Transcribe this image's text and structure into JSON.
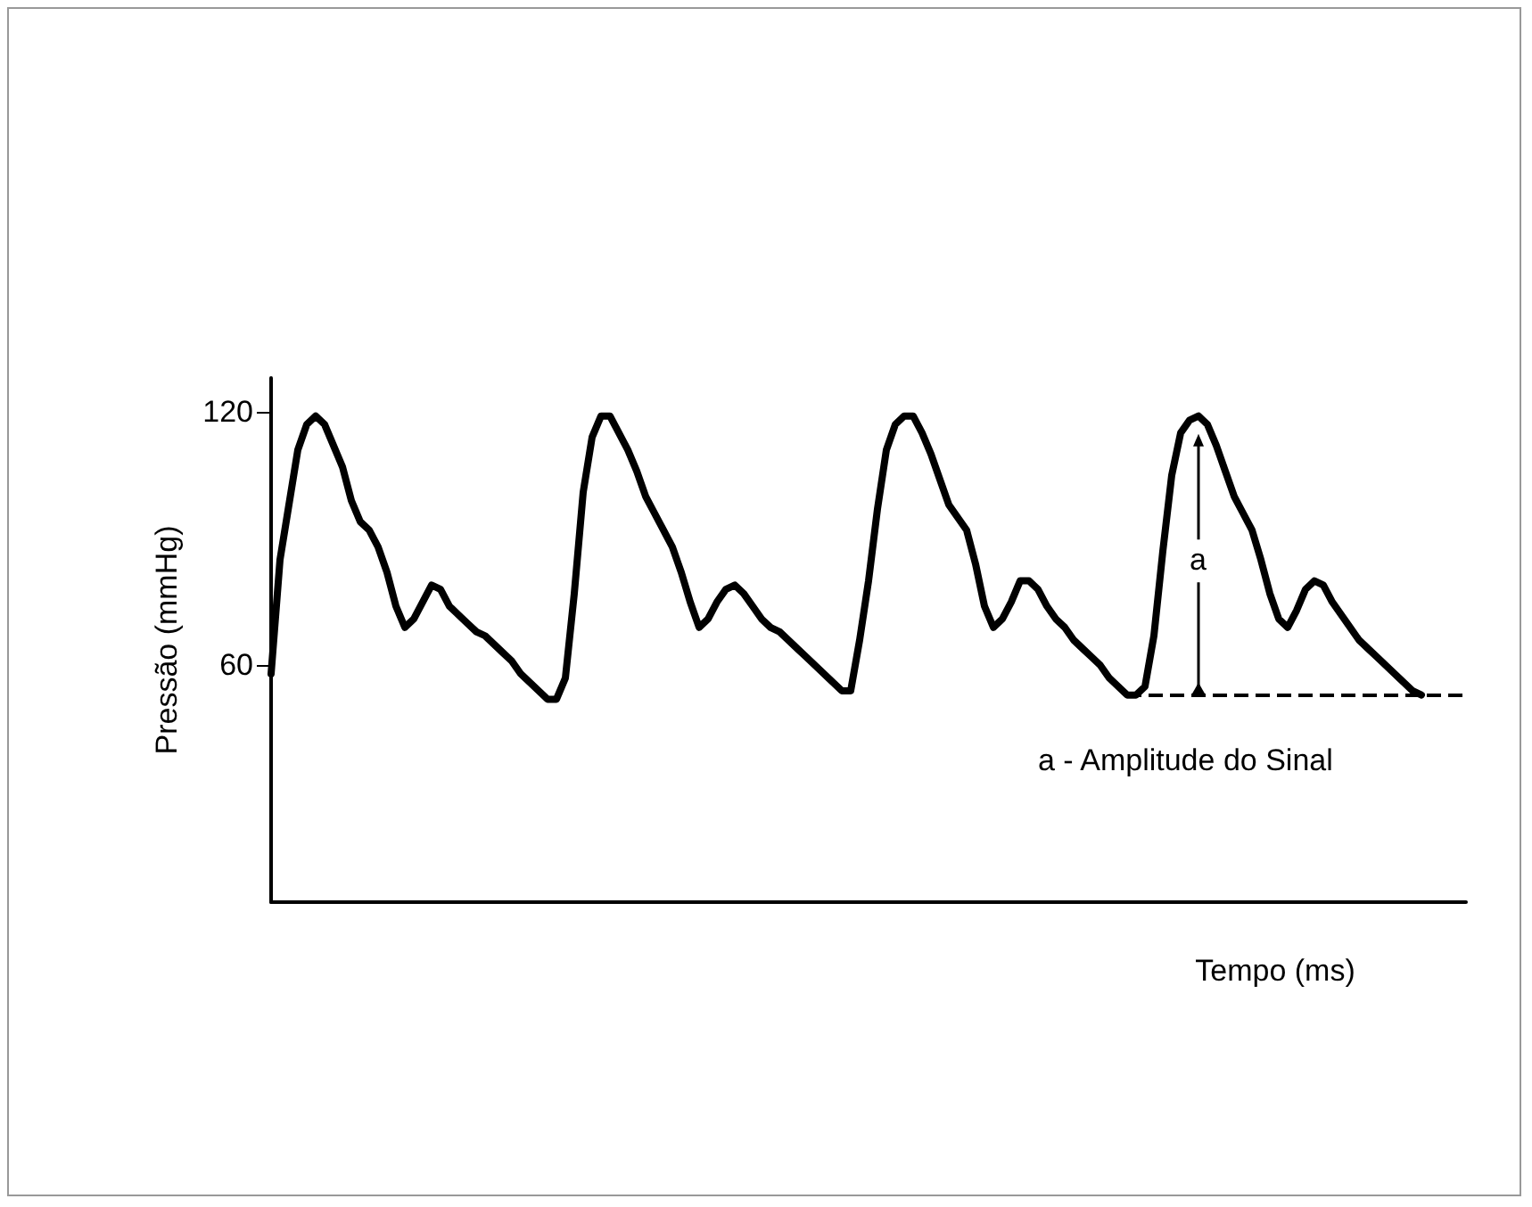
{
  "chart_data": {
    "type": "line",
    "xlabel": "Tempo (ms)",
    "ylabel": "Pressão (mmHg)",
    "categories": [
      null,
      null,
      null,
      null,
      null,
      null,
      null,
      null,
      null,
      null,
      null,
      null,
      null,
      null,
      null,
      null,
      null,
      null,
      null,
      null,
      null,
      null,
      null,
      null,
      null,
      null,
      null,
      null,
      null,
      null,
      null,
      null,
      null,
      null,
      null,
      null,
      null,
      null,
      null,
      null,
      null,
      null,
      null,
      null,
      null,
      null,
      null,
      null,
      null,
      null,
      null,
      null,
      null,
      null,
      null,
      null,
      null,
      null,
      null,
      null,
      null,
      null,
      null,
      null,
      null,
      null,
      null,
      null,
      null,
      null,
      null,
      null,
      null,
      null,
      null,
      null,
      null,
      null,
      null,
      null,
      null,
      null,
      null,
      null,
      null,
      null,
      null,
      null,
      null,
      null,
      null,
      null,
      null,
      null,
      null,
      null,
      null,
      null,
      null,
      null,
      null,
      null,
      null,
      null,
      null,
      null,
      null,
      null,
      null,
      null,
      null,
      null,
      null,
      null,
      null,
      null,
      null,
      null,
      null,
      null,
      null,
      null,
      null,
      null,
      null,
      null,
      null,
      null,
      null,
      null,
      null,
      null,
      null,
      null,
      null
    ],
    "series": [
      {
        "color": "#000000",
        "values": [
          58,
          85,
          98,
          111,
          117,
          119,
          117,
          112,
          107,
          99,
          94,
          92,
          88,
          82,
          74,
          69,
          71,
          75,
          79,
          78,
          74,
          72,
          70,
          68,
          67,
          65,
          63,
          61,
          58,
          56,
          54,
          52,
          52,
          57,
          77,
          101,
          114,
          119,
          119,
          115,
          111,
          106,
          100,
          96,
          92,
          88,
          82,
          75,
          69,
          71,
          75,
          78,
          79,
          77,
          74,
          71,
          69,
          68,
          66,
          64,
          62,
          60,
          58,
          56,
          54,
          54,
          66,
          80,
          97,
          111,
          117,
          119,
          119,
          115,
          110,
          104,
          98,
          95,
          92,
          84,
          74,
          69,
          71,
          75,
          80,
          80,
          78,
          74,
          71,
          69,
          66,
          64,
          62,
          60,
          57,
          55,
          53,
          53,
          55,
          67,
          87,
          105,
          115,
          118,
          119,
          117,
          112,
          106,
          100,
          96,
          92,
          85,
          77,
          71,
          69,
          73,
          78,
          80,
          79,
          75,
          72,
          69,
          66,
          64,
          62,
          60,
          58,
          56,
          54,
          53,
          null,
          null,
          null,
          null,
          null
        ]
      }
    ],
    "ylim": [
      4,
      128
    ],
    "yticks": [
      60,
      120
    ],
    "grid": false,
    "marker": "none",
    "line_style": "solid",
    "ref_lines": [
      {
        "axis": "y",
        "value": 53,
        "color": "#000000",
        "line_style": "dashed"
      }
    ],
    "annotations": [
      "a",
      "a - Amplitude do Sinal"
    ]
  }
}
